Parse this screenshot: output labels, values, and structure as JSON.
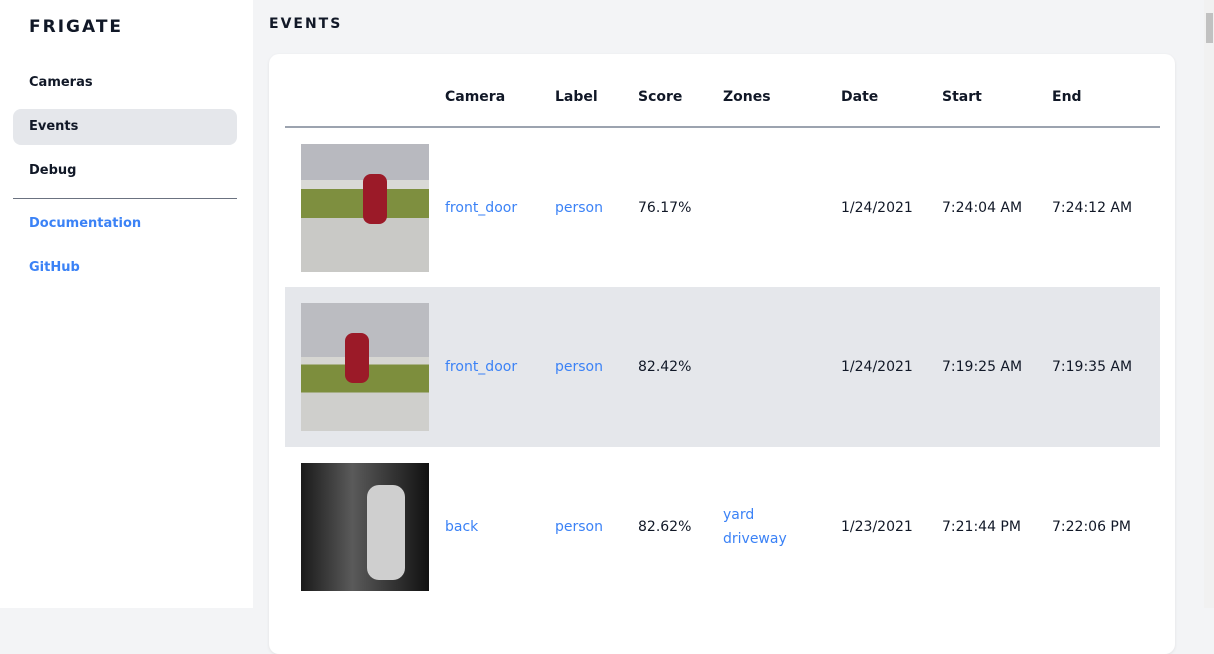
{
  "sidebar": {
    "logo": "FRIGATE",
    "items": [
      {
        "label": "Cameras"
      },
      {
        "label": "Events",
        "active": true
      },
      {
        "label": "Debug"
      }
    ],
    "links": [
      {
        "label": "Documentation"
      },
      {
        "label": "GitHub"
      }
    ]
  },
  "page": {
    "title": "EVENTS"
  },
  "table": {
    "headers": [
      "",
      "Camera",
      "Label",
      "Score",
      "Zones",
      "Date",
      "Start",
      "End"
    ],
    "rows": [
      {
        "camera": "front_door",
        "label": "person",
        "score": "76.17%",
        "zones": [
          "",
          ""
        ],
        "date": "1/24/2021",
        "start": "7:24:04 AM",
        "end": "7:24:12 AM"
      },
      {
        "camera": "front_door",
        "label": "person",
        "score": "82.42%",
        "zones": [
          "",
          ""
        ],
        "date": "1/24/2021",
        "start": "7:19:25 AM",
        "end": "7:19:35 AM"
      },
      {
        "camera": "back",
        "label": "person",
        "score": "82.62%",
        "zones": [
          "yard",
          "driveway"
        ],
        "date": "1/23/2021",
        "start": "7:21:44 PM",
        "end": "7:22:06 PM"
      }
    ]
  },
  "colors": {
    "accent": "#3b82f6",
    "active_bg": "#e5e7eb",
    "page_bg": "#f3f4f6"
  }
}
